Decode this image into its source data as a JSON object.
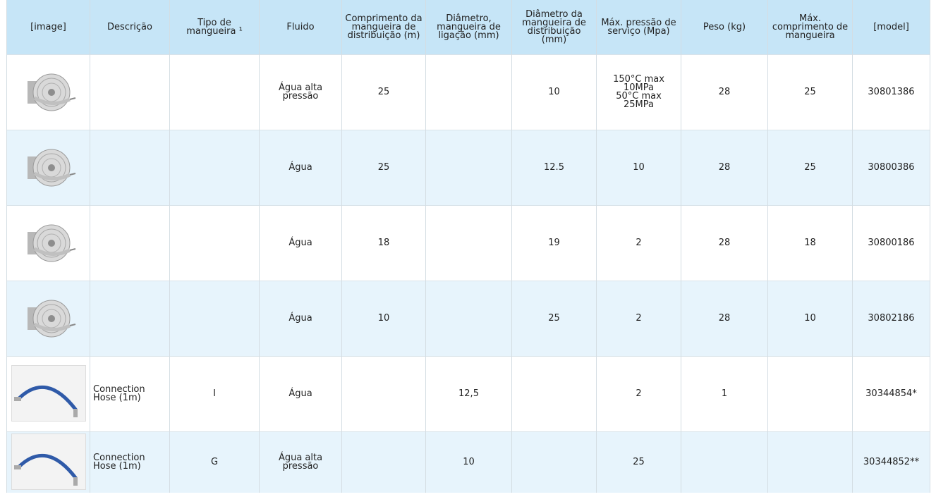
{
  "table": {
    "header": [
      "[image]",
      "Descrição",
      "Tipo de mangueira ¹",
      "Fluido",
      "Comprimento da mangueira de distribuição (m)",
      "Diâmetro, mangueira de ligação (mm)",
      "Diâmetro da mangueira de distribuição (mm)",
      "Máx. pressão de serviço (Mpa)",
      "Peso (kg)",
      "Máx. comprimento de mangueira",
      "[model]"
    ],
    "rows": [
      [
        null,
        null,
        "Água alta pressão",
        "25",
        null,
        "10",
        "150°C max\n10MPa\n50°C max\n25MPa",
        "28",
        "25",
        "30801386"
      ],
      [
        null,
        null,
        "Água",
        "25",
        null,
        "12.5",
        "10",
        "28",
        "25",
        "30800386"
      ],
      [
        null,
        null,
        "Água",
        "18",
        null,
        "19",
        "2",
        "28",
        "18",
        "30800186"
      ],
      [
        null,
        null,
        "Água",
        "10",
        null,
        "25",
        "2",
        "28",
        "10",
        "30802186"
      ],
      [
        "Connection Hose (1m)",
        "I",
        "Água",
        null,
        "12,5",
        null,
        "2",
        "1",
        null,
        "30344854*"
      ],
      [
        "Connection Hose (1m)",
        "G",
        "Água alta pressão",
        null,
        "10",
        null,
        "25",
        null,
        null,
        "30344852**"
      ]
    ]
  }
}
